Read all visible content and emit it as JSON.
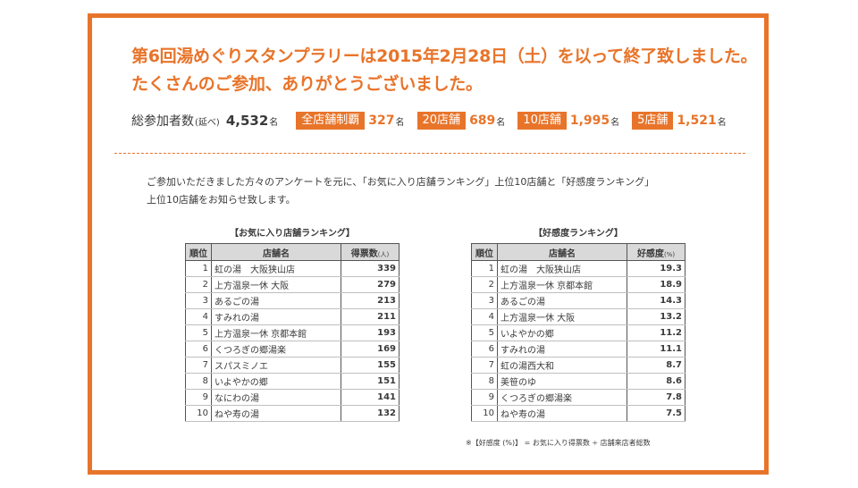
{
  "headline": {
    "line1": "第6回湯めぐりスタンプラリーは2015年2月28日（土）を以って終了致しました。",
    "line2": "たくさんのご参加、ありがとうございました。"
  },
  "stats": {
    "total_label": "総参加者数",
    "total_sub": "(延べ)",
    "total_value": "4,532",
    "unit": "名",
    "badges": [
      {
        "label": "全店舗制覇",
        "value": "327"
      },
      {
        "label": "20店舗",
        "value": "689"
      },
      {
        "label": "10店舗",
        "value": "1,995"
      },
      {
        "label": "5店舗",
        "value": "1,521"
      }
    ]
  },
  "intro": {
    "line1": "ご参加いただきました方々のアンケートを元に、「お気に入り店舗ランキング」上位10店舗と「好感度ランキング」",
    "line2": "上位10店舗をお知らせ致します。"
  },
  "favorites": {
    "title": "【お気に入り店舗ランキング】",
    "headers": {
      "rank": "順位",
      "name": "店舗名",
      "value": "得票数",
      "unit": "(人)"
    },
    "rows": [
      {
        "rank": "1",
        "name": "虹の湯　大阪狭山店",
        "value": "339"
      },
      {
        "rank": "2",
        "name": "上方温泉一休 大阪",
        "value": "279"
      },
      {
        "rank": "3",
        "name": "あるごの湯",
        "value": "213"
      },
      {
        "rank": "4",
        "name": "すみれの湯",
        "value": "211"
      },
      {
        "rank": "5",
        "name": "上方温泉一休 京都本館",
        "value": "193"
      },
      {
        "rank": "6",
        "name": "くつろぎの郷湯楽",
        "value": "169"
      },
      {
        "rank": "7",
        "name": "スパスミノエ",
        "value": "155"
      },
      {
        "rank": "8",
        "name": "いよやかの郷",
        "value": "151"
      },
      {
        "rank": "9",
        "name": "なにわの湯",
        "value": "141"
      },
      {
        "rank": "10",
        "name": "ねや寿の湯",
        "value": "132"
      }
    ]
  },
  "likability": {
    "title": "【好感度ランキング】",
    "headers": {
      "rank": "順位",
      "name": "店舗名",
      "value": "好感度",
      "unit": "(%)"
    },
    "rows": [
      {
        "rank": "1",
        "name": "虹の湯　大阪狭山店",
        "value": "19.3"
      },
      {
        "rank": "2",
        "name": "上方温泉一休 京都本館",
        "value": "18.9"
      },
      {
        "rank": "3",
        "name": "あるごの湯",
        "value": "14.3"
      },
      {
        "rank": "4",
        "name": "上方温泉一休 大阪",
        "value": "13.2"
      },
      {
        "rank": "5",
        "name": "いよやかの郷",
        "value": "11.2"
      },
      {
        "rank": "6",
        "name": "すみれの湯",
        "value": "11.1"
      },
      {
        "rank": "7",
        "name": "虹の湯西大和",
        "value": "8.7"
      },
      {
        "rank": "8",
        "name": "美笹のゆ",
        "value": "8.6"
      },
      {
        "rank": "9",
        "name": "くつろぎの郷湯楽",
        "value": "7.8"
      },
      {
        "rank": "10",
        "name": "ねや寿の湯",
        "value": "7.5"
      }
    ],
    "note": "※【好感度 (%)】 = お気に入り得票数 ÷ 店舗来店者総数"
  },
  "colors": {
    "accent": "#e8742a",
    "header_bg": "#d9d9d9"
  }
}
